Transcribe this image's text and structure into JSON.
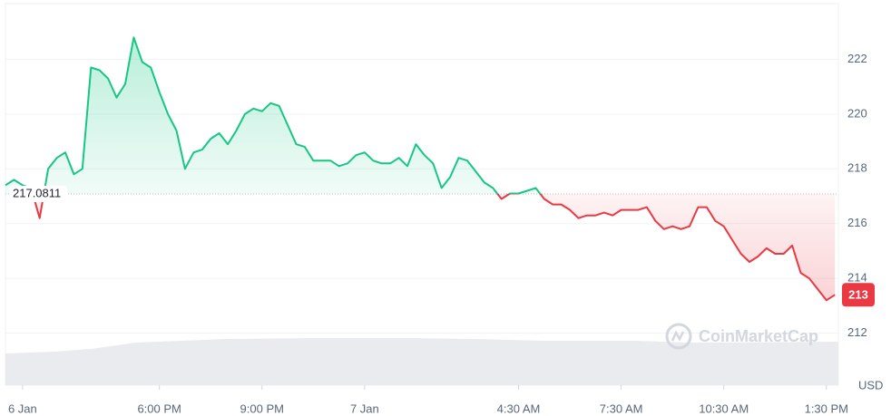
{
  "chart_data": {
    "type": "baseline-line",
    "x": [
      13.5,
      13.75,
      14,
      14.25,
      14.5,
      14.75,
      15,
      15.25,
      15.5,
      15.75,
      16,
      16.25,
      16.5,
      16.75,
      17,
      17.25,
      17.5,
      17.75,
      18,
      18.25,
      18.5,
      18.75,
      19,
      19.25,
      19.5,
      19.75,
      20,
      20.25,
      20.5,
      20.75,
      21,
      21.25,
      21.5,
      21.75,
      22,
      22.25,
      22.5,
      22.75,
      23,
      23.25,
      23.5,
      23.75,
      24,
      24.25,
      24.5,
      24.75,
      25,
      25.25,
      25.5,
      25.75,
      26,
      26.25,
      26.5,
      26.75,
      27,
      27.25,
      27.5,
      27.75,
      28,
      28.25,
      28.5,
      28.75,
      29,
      29.25,
      29.5,
      29.75,
      30,
      30.25,
      30.5,
      30.75,
      31,
      31.25,
      31.5,
      31.75,
      32,
      32.25,
      32.5,
      32.75,
      33,
      33.25,
      33.5,
      33.75,
      34,
      34.25,
      34.5,
      34.75,
      35,
      35.25,
      35.5,
      35.75,
      36,
      36.25,
      36.5,
      36.75,
      37,
      37.25,
      37.5,
      37.75
    ],
    "values": [
      217.4,
      217.6,
      217.4,
      217.3,
      216.2,
      218.0,
      218.4,
      218.6,
      217.8,
      218.0,
      221.7,
      221.6,
      221.3,
      220.6,
      221.1,
      222.8,
      221.9,
      221.7,
      220.8,
      220.0,
      219.4,
      218.0,
      218.6,
      218.7,
      219.1,
      219.3,
      218.9,
      219.4,
      220.0,
      220.2,
      220.1,
      220.4,
      220.3,
      219.6,
      218.9,
      218.8,
      218.3,
      218.3,
      218.3,
      218.1,
      218.2,
      218.5,
      218.6,
      218.3,
      218.2,
      218.2,
      218.4,
      218.1,
      218.9,
      218.5,
      218.2,
      217.3,
      217.7,
      218.4,
      218.3,
      217.9,
      217.5,
      217.3,
      216.9,
      217.1,
      217.1,
      217.2,
      217.3,
      216.9,
      216.7,
      216.7,
      216.5,
      216.2,
      216.3,
      216.3,
      216.4,
      216.3,
      216.5,
      216.5,
      216.5,
      216.6,
      216.1,
      215.8,
      215.9,
      215.8,
      215.9,
      216.6,
      216.6,
      216.1,
      215.9,
      215.4,
      214.9,
      214.6,
      214.8,
      215.1,
      214.9,
      214.9,
      215.2,
      214.2,
      214.0,
      213.6,
      213.2,
      213.4
    ],
    "baseline": 217.0811,
    "current_price": {
      "value": 213.4,
      "label": "213"
    },
    "up_color": "#16c784",
    "down_color": "#ea3943",
    "xlim": [
      13.5,
      37.85
    ],
    "xticks": [
      {
        "value": 14,
        "label": "6 Jan"
      },
      {
        "value": 18,
        "label": "6:00 PM"
      },
      {
        "value": 21,
        "label": "9:00 PM"
      },
      {
        "value": 24,
        "label": "7 Jan"
      },
      {
        "value": 28.5,
        "label": "4:30 AM"
      },
      {
        "value": 31.5,
        "label": "7:30 AM"
      },
      {
        "value": 34.5,
        "label": "10:30 AM"
      },
      {
        "value": 37.5,
        "label": "1:30 PM"
      }
    ],
    "ylim": [
      210.1,
      224
    ],
    "yticks": [
      212,
      214,
      216,
      218,
      220,
      222
    ],
    "y_unit": "USD",
    "watermark": "CoinMarketCap",
    "grid": true
  }
}
